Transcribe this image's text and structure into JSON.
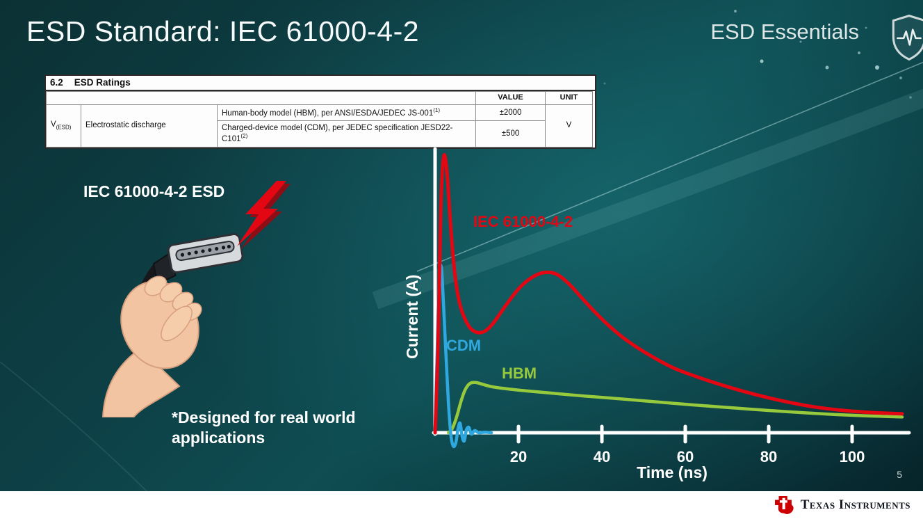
{
  "slide": {
    "title": "ESD Standard: IEC 61000-4-2",
    "series_label": "ESD Essentials",
    "device_label": "IEC 61000-4-2 ESD",
    "footnote": "*Designed for real world applications",
    "page_number": "5"
  },
  "ratings_table": {
    "section_number": "6.2",
    "section_title": "ESD Ratings",
    "col_value": "VALUE",
    "col_unit": "UNIT",
    "param_symbol": "V",
    "param_subscript": "(ESD)",
    "param_name": "Electrostatic discharge",
    "rows": [
      {
        "description": "Human-body model (HBM), per ANSI/ESDA/JEDEC JS-001",
        "footnote_ref": "(1)",
        "value": "±2000"
      },
      {
        "description": "Charged-device model (CDM), per JEDEC specification JESD22-C101",
        "footnote_ref": "(2)",
        "value": "±500"
      }
    ],
    "unit": "V"
  },
  "chart_data": {
    "type": "line",
    "title": "",
    "xlabel": "Time (ns)",
    "ylabel": "Current (A)",
    "xlim": [
      0,
      112
    ],
    "ylim": [
      -1,
      10.5
    ],
    "x_ticks": [
      20,
      40,
      60,
      80,
      100
    ],
    "grid": false,
    "legend": "inline-labels",
    "series": [
      {
        "name": "HBM",
        "color": "#97c93d",
        "points": [
          [
            3.2,
            0
          ],
          [
            4.2,
            0.18
          ],
          [
            5.2,
            0.6
          ],
          [
            6.2,
            1.15
          ],
          [
            7.2,
            1.58
          ],
          [
            8.4,
            1.82
          ],
          [
            9.8,
            1.85
          ],
          [
            11.5,
            1.78
          ],
          [
            13.5,
            1.7
          ],
          [
            16,
            1.64
          ],
          [
            20,
            1.57
          ],
          [
            25,
            1.5
          ],
          [
            30,
            1.43
          ],
          [
            36,
            1.35
          ],
          [
            42,
            1.28
          ],
          [
            49,
            1.19
          ],
          [
            56,
            1.1
          ],
          [
            64,
            1.0
          ],
          [
            72,
            0.91
          ],
          [
            80,
            0.82
          ],
          [
            88,
            0.74
          ],
          [
            96,
            0.67
          ],
          [
            104,
            0.62
          ],
          [
            112,
            0.58
          ]
        ]
      },
      {
        "name": "CDM",
        "color": "#2fa8e0",
        "points": [
          [
            0,
            0
          ],
          [
            0.5,
            3.0
          ],
          [
            1.0,
            5.7
          ],
          [
            1.5,
            6.1
          ],
          [
            2.0,
            4.8
          ],
          [
            2.6,
            2.9
          ],
          [
            3.2,
            1.1
          ],
          [
            3.8,
            -0.1
          ],
          [
            4.4,
            -0.5
          ],
          [
            5.0,
            -0.35
          ],
          [
            5.5,
            0.15
          ],
          [
            6.0,
            0.35
          ],
          [
            6.5,
            -0.15
          ],
          [
            7.0,
            -0.3
          ],
          [
            7.5,
            0.1
          ],
          [
            8.1,
            0.2
          ],
          [
            8.7,
            -0.05
          ],
          [
            9.5,
            0.08
          ],
          [
            10.5,
            0
          ],
          [
            12,
            0.02
          ],
          [
            13.5,
            0
          ]
        ]
      },
      {
        "name": "IEC 61000-4-2",
        "color": "#e30613",
        "points": [
          [
            0,
            0
          ],
          [
            0.7,
            3.2
          ],
          [
            1.4,
            8.4
          ],
          [
            2.1,
            10.2
          ],
          [
            2.9,
            9.5
          ],
          [
            3.7,
            7.7
          ],
          [
            4.7,
            5.9
          ],
          [
            6,
            4.7
          ],
          [
            8,
            3.95
          ],
          [
            10,
            3.7
          ],
          [
            12,
            3.75
          ],
          [
            14,
            4.05
          ],
          [
            17,
            4.7
          ],
          [
            20,
            5.3
          ],
          [
            23,
            5.7
          ],
          [
            26,
            5.9
          ],
          [
            29,
            5.85
          ],
          [
            32,
            5.5
          ],
          [
            35,
            5.0
          ],
          [
            38,
            4.5
          ],
          [
            42,
            3.9
          ],
          [
            46,
            3.4
          ],
          [
            51,
            2.9
          ],
          [
            57,
            2.4
          ],
          [
            63,
            2.05
          ],
          [
            70,
            1.7
          ],
          [
            77,
            1.4
          ],
          [
            84,
            1.15
          ],
          [
            91,
            0.95
          ],
          [
            98,
            0.82
          ],
          [
            105,
            0.74
          ],
          [
            112,
            0.7
          ]
        ]
      }
    ]
  },
  "footer": {
    "brand": "Texas Instruments"
  }
}
